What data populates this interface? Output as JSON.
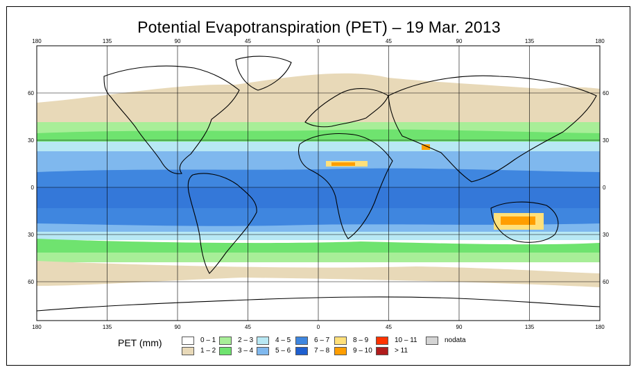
{
  "title": "Potential Evapotranspiration (PET) – 19 Mar. 2013",
  "axes": {
    "top_lon_labels": [
      "180",
      "135",
      "90",
      "45",
      "0",
      "45",
      "90",
      "135",
      "180"
    ],
    "bottom_lon_labels": [
      "180",
      "135",
      "90",
      "45",
      "0",
      "45",
      "90",
      "135",
      "180"
    ],
    "left_lat_labels": [
      "60",
      "30",
      "0",
      "30",
      "60"
    ],
    "right_lat_labels": [
      "60",
      "30",
      "0",
      "30",
      "60"
    ]
  },
  "legend": {
    "title": "PET (mm)",
    "items": [
      {
        "label": "0 – 1",
        "color": "#ffffff"
      },
      {
        "label": "1 – 2",
        "color": "#e8d9b8"
      },
      {
        "label": "2 – 3",
        "color": "#a8ee98"
      },
      {
        "label": "3 – 4",
        "color": "#6fe36f"
      },
      {
        "label": "4 – 5",
        "color": "#b8e8f4"
      },
      {
        "label": "5 – 6",
        "color": "#7fb8ee"
      },
      {
        "label": "6 – 7",
        "color": "#3f86df"
      },
      {
        "label": "7 – 8",
        "color": "#1f5fcf"
      },
      {
        "label": "8 – 9",
        "color": "#ffe07a"
      },
      {
        "label": "9 – 10",
        "color": "#ff9e00"
      },
      {
        "label": "10 – 11",
        "color": "#ff3300"
      },
      {
        "label": "> 11",
        "color": "#b01c1c"
      },
      {
        "label": "nodata",
        "color": "#d4d4d4"
      }
    ]
  }
}
